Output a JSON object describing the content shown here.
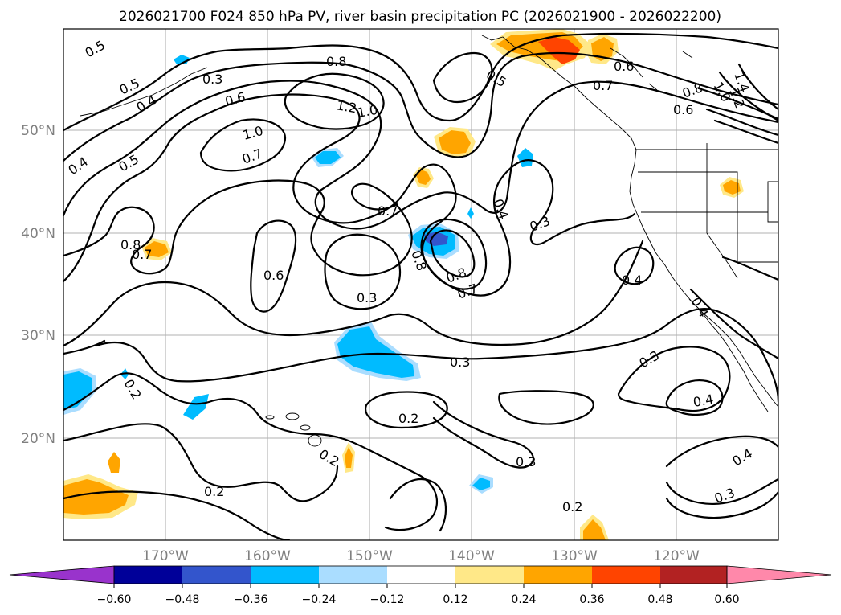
{
  "title": "2026021700 F024 850 hPa PV, river basin precipitation PC (2026021900 - 2026022200)",
  "map": {
    "lon_range": [
      -180,
      -110
    ],
    "lat_range": [
      10,
      60
    ],
    "lat_ticks": [
      {
        "value": 50,
        "label": "50°N"
      },
      {
        "value": 40,
        "label": "40°N"
      },
      {
        "value": 30,
        "label": "30°N"
      },
      {
        "value": 20,
        "label": "20°N"
      }
    ],
    "lon_ticks": [
      {
        "value": -170,
        "label": "170°W"
      },
      {
        "value": -160,
        "label": "160°W"
      },
      {
        "value": -150,
        "label": "150°W"
      },
      {
        "value": -140,
        "label": "140°W"
      },
      {
        "value": -130,
        "label": "130°W"
      },
      {
        "value": -120,
        "label": "120°W"
      }
    ]
  },
  "contour_labels": [
    "0.5",
    "0.5",
    "0.4",
    "0.3",
    "0.8",
    "0.6",
    "1.2",
    "1.0",
    "1.0",
    "0.7",
    "0.5",
    "0.4",
    "0.7",
    "0.8",
    "0.7",
    "0.6",
    "0.3",
    "0.8",
    "0.8",
    "0.7",
    "0.4",
    "0.3",
    "0.5",
    "0.7",
    "0.6",
    "0.8",
    "1.0",
    "1.4",
    "1.2",
    "0.6",
    "0.4",
    "0.3",
    "0.4",
    "0.3",
    "0.2",
    "0.2",
    "0.2",
    "0.2",
    "0.3",
    "0.4",
    "0.4",
    "0.3",
    "0.2"
  ],
  "colorbar": {
    "tick_labels": [
      "−0.60",
      "−0.48",
      "−0.36",
      "−0.24",
      "−0.12",
      "0.12",
      "0.24",
      "0.36",
      "0.48",
      "0.60"
    ],
    "colors": [
      "#9933cc",
      "#000099",
      "#3355cc",
      "#00bbff",
      "#aaddff",
      "#ffffff",
      "#ffe888",
      "#ffa500",
      "#ff4400",
      "#b22222",
      "#ff88aa"
    ]
  },
  "colors": {
    "dark_blue": "#3355cc",
    "cyan": "#00bbff",
    "light_blue": "#aaddff",
    "yellow": "#ffe888",
    "orange": "#ffa500",
    "red": "#ff4400"
  }
}
